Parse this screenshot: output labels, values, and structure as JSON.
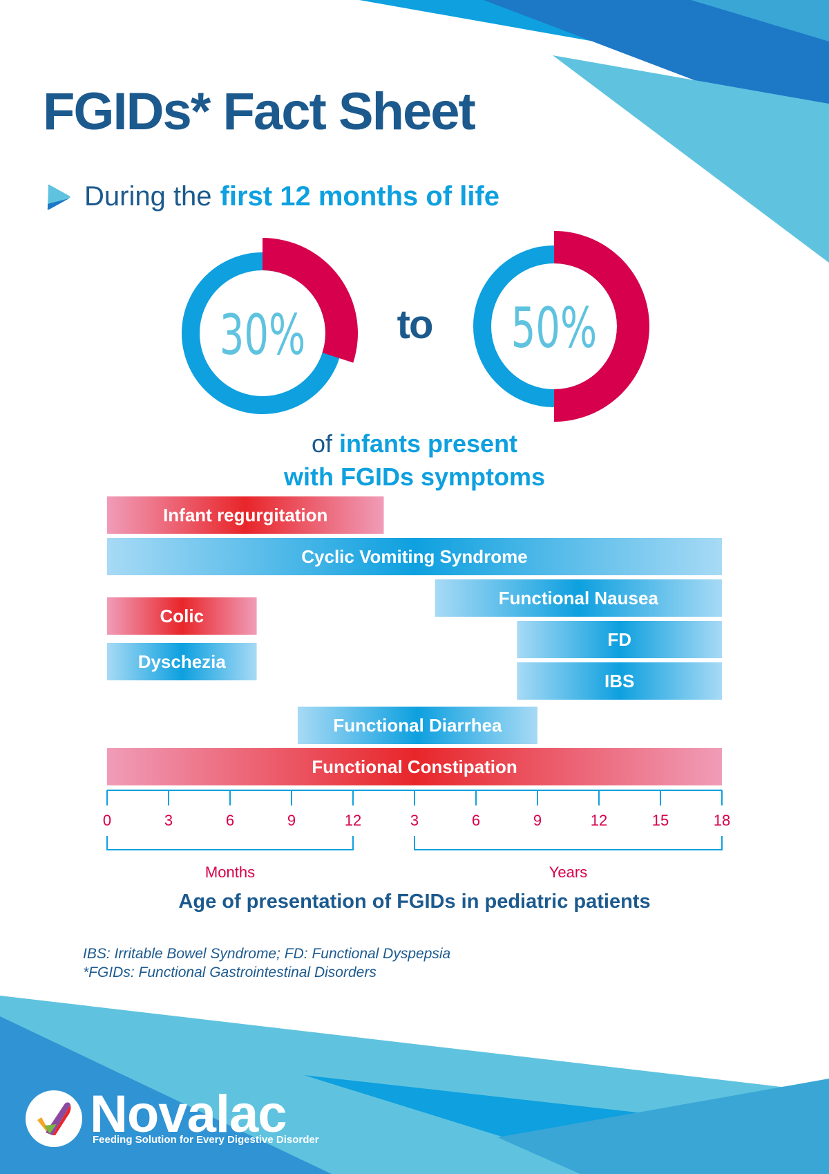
{
  "title": "FGIDs* Fact Sheet",
  "intro": {
    "lead": "During the",
    "highlight": "first 12 months of life"
  },
  "stats": {
    "low": {
      "label": "30%",
      "value": 30
    },
    "connector": "to",
    "high": {
      "label": "50%",
      "value": 50
    },
    "caption_prefix": "of",
    "caption_highlight": "infants present",
    "caption_line2": "with FGIDs symptoms"
  },
  "colors": {
    "navy": "#1c5a8e",
    "blue": "#0ea0df",
    "sky": "#5fc3df",
    "crimson": "#d6004c",
    "red": "#e8262a",
    "pink": "#f09cb8"
  },
  "chart_data": {
    "type": "bar",
    "orientation": "horizontal-range",
    "title": "Age of presentation of FGIDs in pediatric patients",
    "x_axis": {
      "ticks": [
        {
          "label": "0",
          "age_months": 0
        },
        {
          "label": "3",
          "age_months": 3
        },
        {
          "label": "6",
          "age_months": 6
        },
        {
          "label": "9",
          "age_months": 9
        },
        {
          "label": "12",
          "age_months": 12
        },
        {
          "label": "3",
          "age_months": 36
        },
        {
          "label": "6",
          "age_months": 72
        },
        {
          "label": "9",
          "age_months": 108
        },
        {
          "label": "12",
          "age_months": 144
        },
        {
          "label": "15",
          "age_months": 180
        },
        {
          "label": "18",
          "age_months": 216
        }
      ],
      "groups": [
        {
          "label": "Months",
          "from_month": 0,
          "to_month": 12
        },
        {
          "label": "Years",
          "from_month": 36,
          "to_month": 216
        }
      ]
    },
    "bars": [
      {
        "name": "Infant regurgitation",
        "start_age_months": 0,
        "end_age_months": 24,
        "color": "red"
      },
      {
        "name": "Cyclic Vomiting Syndrome",
        "start_age_months": 0,
        "end_age_months": 216,
        "color": "blue"
      },
      {
        "name": "Functional Nausea",
        "start_age_months": 48,
        "end_age_months": 216,
        "color": "blue"
      },
      {
        "name": "Colic",
        "start_age_months": 0,
        "end_age_months": 7.3,
        "color": "red"
      },
      {
        "name": "FD",
        "start_age_months": 96,
        "end_age_months": 216,
        "color": "blue"
      },
      {
        "name": "Dyschezia",
        "start_age_months": 0,
        "end_age_months": 7.3,
        "color": "blue"
      },
      {
        "name": "IBS",
        "start_age_months": 96,
        "end_age_months": 216,
        "color": "blue"
      },
      {
        "name": "Functional Diarrhea",
        "start_age_months": 9.3,
        "end_age_months": 108,
        "color": "blue"
      },
      {
        "name": "Functional Constipation",
        "start_age_months": 0,
        "end_age_months": 216,
        "color": "red"
      }
    ]
  },
  "footnotes": [
    "IBS: Irritable Bowel Syndrome; FD: Functional Dyspepsia",
    "*FGIDs: Functional Gastrointestinal Disorders"
  ],
  "brand": {
    "name": "Novalac",
    "tagline": "Feeding Solution for Every Digestive Disorder"
  }
}
